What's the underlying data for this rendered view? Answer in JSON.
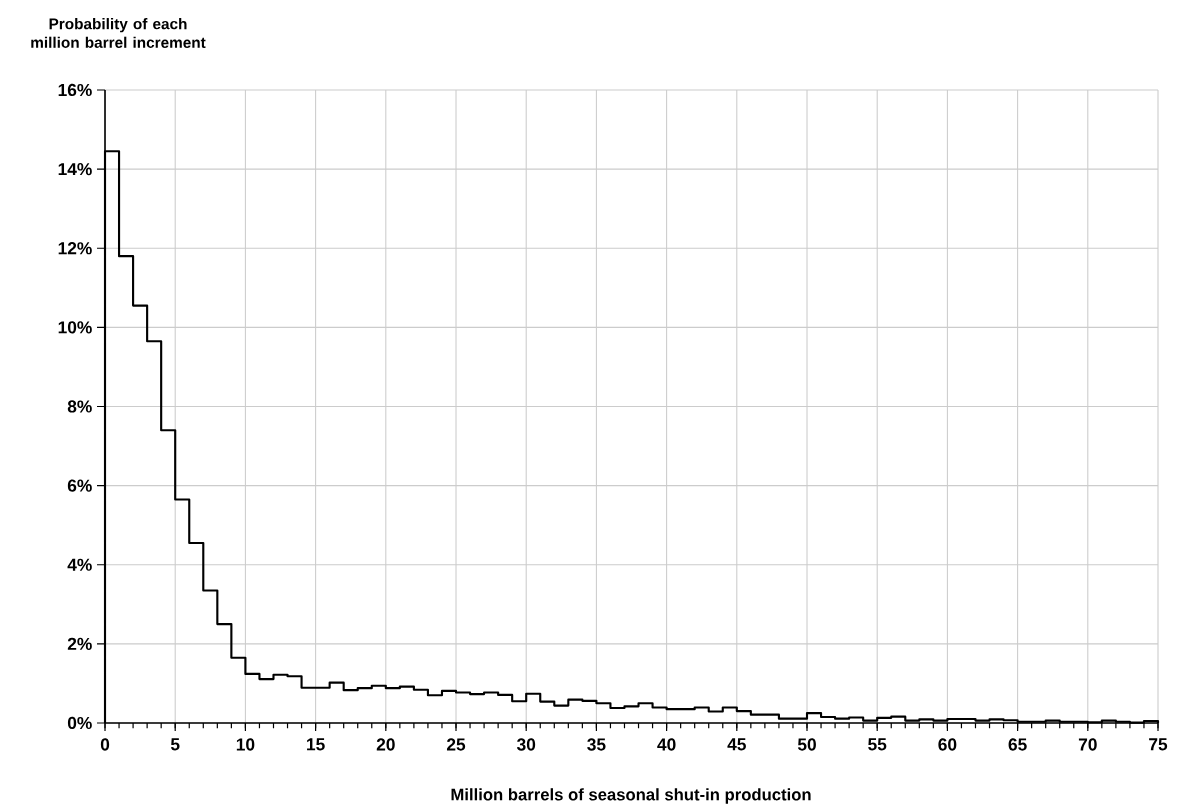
{
  "chart_data": {
    "type": "histogram",
    "ylabel": "Probability of each million barrel increment",
    "xlabel": "Million barrels of seasonal shut-in production",
    "bins": [
      0,
      1,
      2,
      3,
      4,
      5,
      6,
      7,
      8,
      9,
      10,
      11,
      12,
      13,
      14,
      15,
      16,
      17,
      18,
      19,
      20,
      21,
      22,
      23,
      24,
      25,
      26,
      27,
      28,
      29,
      30,
      31,
      32,
      33,
      34,
      35,
      36,
      37,
      38,
      39,
      40,
      41,
      42,
      43,
      44,
      45,
      46,
      47,
      48,
      49,
      50,
      51,
      52,
      53,
      54,
      55,
      56,
      57,
      58,
      59,
      60,
      61,
      62,
      63,
      64,
      65,
      66,
      67,
      68,
      69,
      70,
      71,
      72,
      73,
      74,
      75
    ],
    "values": [
      14.45,
      11.8,
      10.55,
      9.65,
      7.4,
      5.65,
      4.55,
      3.35,
      2.5,
      1.65,
      1.24,
      1.11,
      1.22,
      1.18,
      0.89,
      0.89,
      1.02,
      0.83,
      0.88,
      0.94,
      0.88,
      0.92,
      0.84,
      0.7,
      0.81,
      0.77,
      0.73,
      0.77,
      0.71,
      0.55,
      0.74,
      0.54,
      0.44,
      0.59,
      0.56,
      0.5,
      0.38,
      0.42,
      0.5,
      0.39,
      0.35,
      0.35,
      0.39,
      0.29,
      0.39,
      0.3,
      0.21,
      0.21,
      0.11,
      0.11,
      0.25,
      0.15,
      0.11,
      0.14,
      0.06,
      0.13,
      0.16,
      0.06,
      0.09,
      0.06,
      0.1,
      0.1,
      0.06,
      0.09,
      0.07,
      0.03,
      0.03,
      0.06,
      0.03,
      0.03,
      0.02,
      0.06,
      0.03,
      0.01,
      0.05
    ],
    "color": "#000000",
    "xlim": [
      0,
      75
    ],
    "xticks": [
      0,
      5,
      10,
      15,
      20,
      25,
      30,
      35,
      40,
      45,
      50,
      55,
      60,
      65,
      70,
      75
    ],
    "ylim": [
      0,
      16
    ],
    "yticks": [
      {
        "value": 0,
        "label": "0%"
      },
      {
        "value": 2,
        "label": "2%"
      },
      {
        "value": 4,
        "label": "4%"
      },
      {
        "value": 6,
        "label": "6%"
      },
      {
        "value": 8,
        "label": "8%"
      },
      {
        "value": 10,
        "label": "10%"
      },
      {
        "value": 12,
        "label": "12%"
      },
      {
        "value": 14,
        "label": "14%"
      },
      {
        "value": 16,
        "label": "16%"
      }
    ],
    "grid": true
  }
}
